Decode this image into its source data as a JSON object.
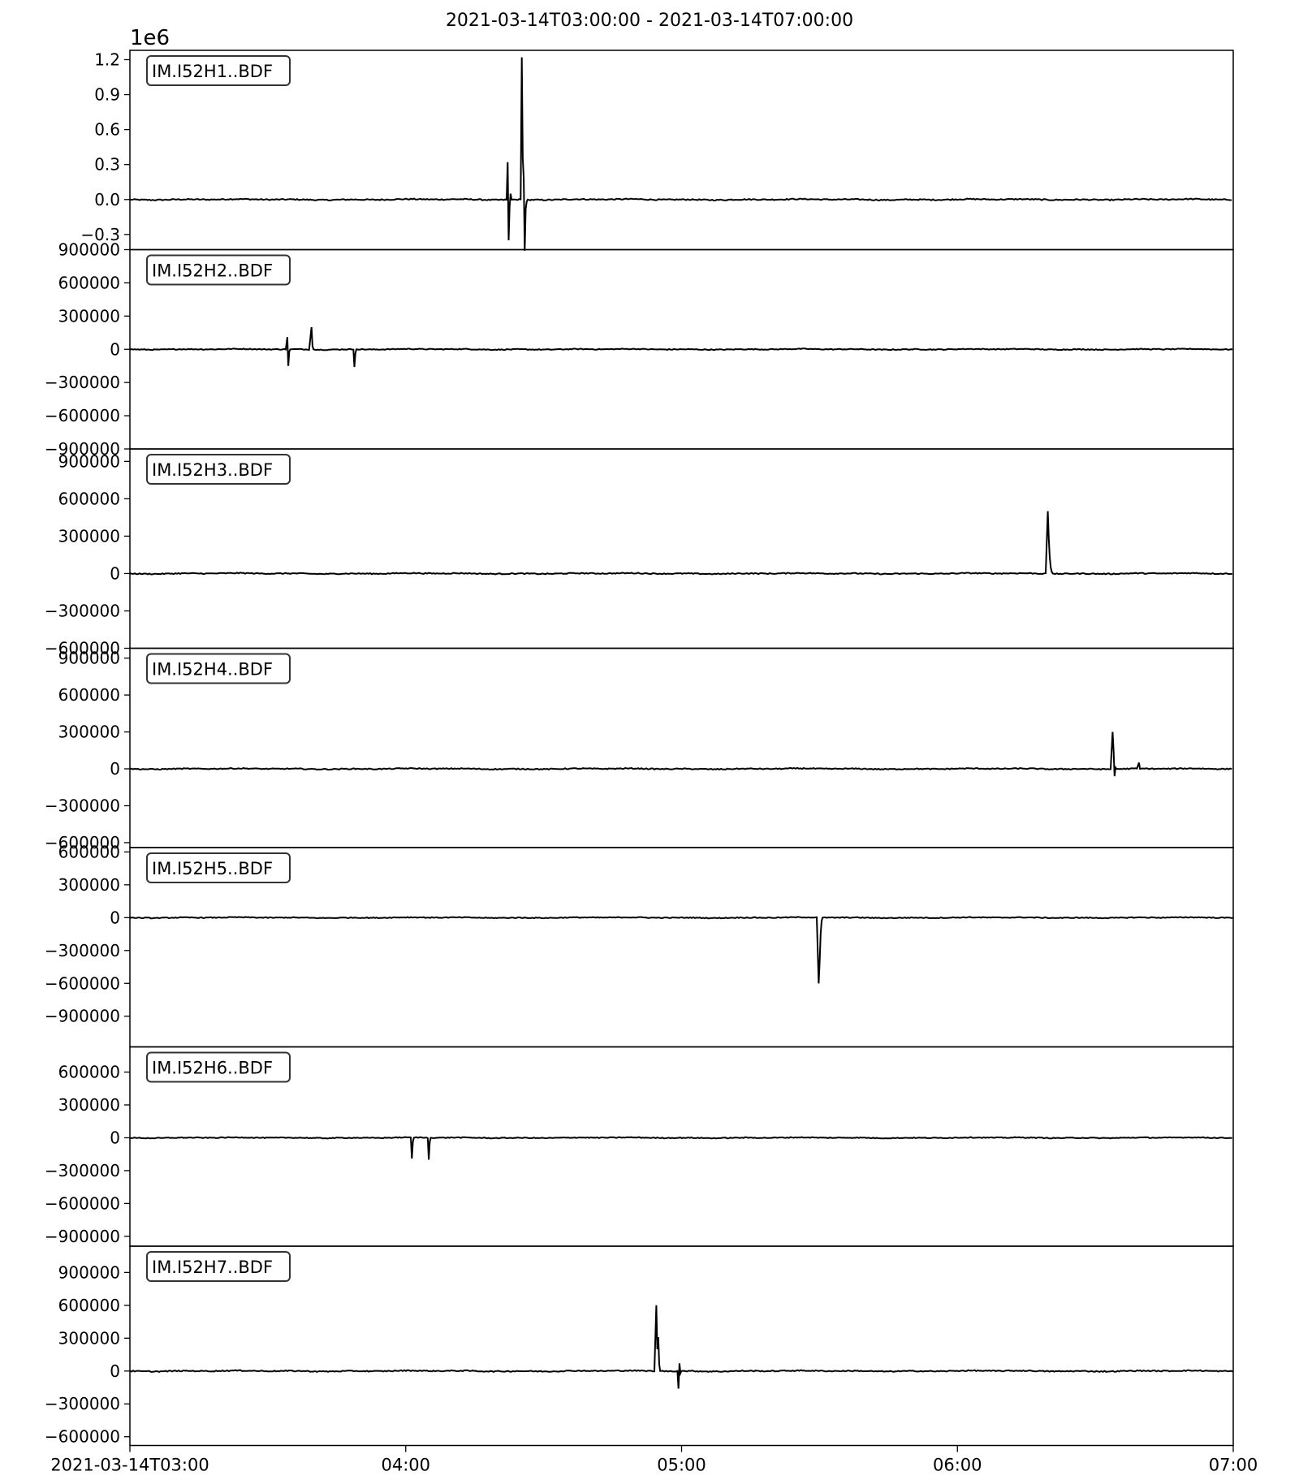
{
  "chart_data": {
    "type": "line",
    "title": "2021-03-14T03:00:00  -  2021-03-14T07:00:00",
    "x_range": [
      "2021-03-14T03:00",
      "2021-03-14T07:00"
    ],
    "x_ticks": [
      {
        "time": "2021-03-14T03:00",
        "label": "2021-03-14T03:00"
      },
      {
        "time": "2021-03-14T04:00",
        "label": "04:00"
      },
      {
        "time": "2021-03-14T05:00",
        "label": "05:00"
      },
      {
        "time": "2021-03-14T06:00",
        "label": "06:00"
      },
      {
        "time": "2021-03-14T07:00",
        "label": "07:00"
      }
    ],
    "grid": false,
    "line_color": "#000000",
    "panels": [
      {
        "name": "IM.I52H1..BDF",
        "ylim": [
          -0.43,
          1.28
        ],
        "y_offset_label": "1e6",
        "y_ticks": [
          {
            "v": 1.2,
            "label": "1.2"
          },
          {
            "v": 0.9,
            "label": "0.9"
          },
          {
            "v": 0.6,
            "label": "0.6"
          },
          {
            "v": 0.3,
            "label": "0.3"
          },
          {
            "v": 0.0,
            "label": "0.0"
          },
          {
            "v": -0.3,
            "label": "−0.3"
          }
        ],
        "noise": 0.006,
        "spikes": [
          {
            "t": "2021-03-14T04:22:10",
            "v": [
              0.32,
              -0.35,
              -0.06,
              0.05,
              0.0
            ]
          },
          {
            "t": "2021-03-14T04:25:15",
            "v": [
              1.22,
              0.35,
              0.18,
              -0.44,
              -0.08,
              -0.02,
              0.0
            ]
          }
        ]
      },
      {
        "name": "IM.I52H2..BDF",
        "ylim": [
          -900000,
          900000
        ],
        "y_ticks": [
          {
            "v": 900000,
            "label": "900000"
          },
          {
            "v": 600000,
            "label": "600000"
          },
          {
            "v": 300000,
            "label": "300000"
          },
          {
            "v": 0,
            "label": "0"
          },
          {
            "v": -300000,
            "label": "−300000"
          },
          {
            "v": -600000,
            "label": "−600000"
          },
          {
            "v": -900000,
            "label": "−900000"
          }
        ],
        "noise": 5000,
        "spikes": [
          {
            "t": "2021-03-14T03:34:15",
            "v": [
              110000,
              -150000,
              -20000,
              0
            ]
          },
          {
            "t": "2021-03-14T03:39:30",
            "v": [
              200000,
              30000,
              0
            ]
          },
          {
            "t": "2021-03-14T03:48:50",
            "v": [
              -160000,
              -40000,
              0
            ]
          }
        ]
      },
      {
        "name": "IM.I52H3..BDF",
        "ylim": [
          -600000,
          1000000
        ],
        "y_ticks": [
          {
            "v": 900000,
            "label": "900000"
          },
          {
            "v": 600000,
            "label": "600000"
          },
          {
            "v": 300000,
            "label": "300000"
          },
          {
            "v": 0,
            "label": "0"
          },
          {
            "v": -300000,
            "label": "−300000"
          },
          {
            "v": -600000,
            "label": "−600000"
          }
        ],
        "noise": 5000,
        "spikes": [
          {
            "t": "2021-03-14T06:19:40",
            "v": [
              500000,
              280000,
              130000,
              50000,
              15000,
              0
            ]
          }
        ]
      },
      {
        "name": "IM.I52H4..BDF",
        "ylim": [
          -640000,
          980000
        ],
        "y_ticks": [
          {
            "v": 900000,
            "label": "900000"
          },
          {
            "v": 600000,
            "label": "600000"
          },
          {
            "v": 300000,
            "label": "300000"
          },
          {
            "v": 0,
            "label": "0"
          },
          {
            "v": -300000,
            "label": "−300000"
          },
          {
            "v": -600000,
            "label": "−600000"
          }
        ],
        "noise": 5000,
        "spikes": [
          {
            "t": "2021-03-14T06:33:45",
            "v": [
              300000,
              150000,
              -60000,
              10000,
              0
            ]
          },
          {
            "t": "2021-03-14T06:39:30",
            "v": [
              50000,
              0
            ]
          }
        ]
      },
      {
        "name": "IM.I52H5..BDF",
        "ylim": [
          -1180000,
          640000
        ],
        "y_ticks": [
          {
            "v": 600000,
            "label": "600000"
          },
          {
            "v": 300000,
            "label": "300000"
          },
          {
            "v": 0,
            "label": "0"
          },
          {
            "v": -300000,
            "label": "−300000"
          },
          {
            "v": -600000,
            "label": "−600000"
          },
          {
            "v": -900000,
            "label": "−900000"
          }
        ],
        "noise": 5000,
        "spikes": [
          {
            "t": "2021-03-14T05:29:50",
            "v": [
              -600000,
              -400000,
              -150000,
              -30000,
              0
            ]
          }
        ]
      },
      {
        "name": "IM.I52H6..BDF",
        "ylim": [
          -990000,
          830000
        ],
        "y_ticks": [
          {
            "v": 600000,
            "label": "600000"
          },
          {
            "v": 300000,
            "label": "300000"
          },
          {
            "v": 0,
            "label": "0"
          },
          {
            "v": -300000,
            "label": "−300000"
          },
          {
            "v": -600000,
            "label": "−600000"
          },
          {
            "v": -900000,
            "label": "−900000"
          }
        ],
        "noise": 5000,
        "spikes": [
          {
            "t": "2021-03-14T04:01:20",
            "v": [
              -190000,
              -40000,
              0
            ]
          },
          {
            "t": "2021-03-14T04:05:00",
            "v": [
              -200000,
              -40000,
              0
            ]
          }
        ]
      },
      {
        "name": "IM.I52H7..BDF",
        "ylim": [
          -680000,
          1140000
        ],
        "y_ticks": [
          {
            "v": 900000,
            "label": "900000"
          },
          {
            "v": 600000,
            "label": "600000"
          },
          {
            "v": 300000,
            "label": "300000"
          },
          {
            "v": 0,
            "label": "0"
          },
          {
            "v": -300000,
            "label": "−300000"
          },
          {
            "v": -600000,
            "label": "−600000"
          }
        ],
        "noise": 6000,
        "spikes": [
          {
            "t": "2021-03-14T04:54:30",
            "v": [
              600000,
              200000,
              310000,
              60000,
              0
            ]
          },
          {
            "t": "2021-03-14T04:59:20",
            "v": [
              -160000,
              70000,
              -20000,
              0
            ]
          }
        ]
      }
    ]
  }
}
